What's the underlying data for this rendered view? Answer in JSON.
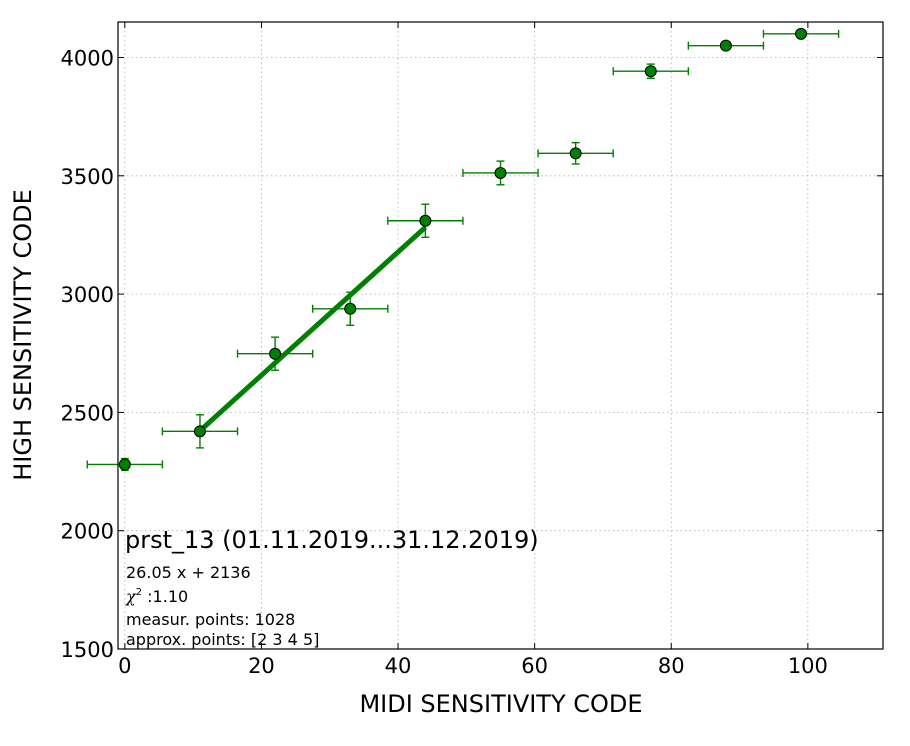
{
  "chart_data": {
    "type": "scatter",
    "xlabel": "MIDI SENSITIVITY CODE",
    "ylabel": "HIGH SENSITIVITY CODE",
    "xlim": [
      -1,
      111
    ],
    "ylim": [
      1500,
      4150
    ],
    "xticks": [
      0,
      20,
      40,
      60,
      80,
      100
    ],
    "yticks": [
      1500,
      2000,
      2500,
      3000,
      3500,
      4000
    ],
    "grid": true,
    "color": "#008000",
    "points": [
      {
        "x": 0,
        "y": 2280,
        "xerr": 5.5,
        "yerr": 25
      },
      {
        "x": 11,
        "y": 2420,
        "xerr": 5.5,
        "yerr": 70
      },
      {
        "x": 22,
        "y": 2748,
        "xerr": 5.5,
        "yerr": 70
      },
      {
        "x": 33,
        "y": 2938,
        "xerr": 5.5,
        "yerr": 70
      },
      {
        "x": 44,
        "y": 3310,
        "xerr": 5.5,
        "yerr": 70
      },
      {
        "x": 55,
        "y": 3512,
        "xerr": 5.5,
        "yerr": 50
      },
      {
        "x": 66,
        "y": 3595,
        "xerr": 5.5,
        "yerr": 45
      },
      {
        "x": 77,
        "y": 3942,
        "xerr": 5.5,
        "yerr": 30
      },
      {
        "x": 88,
        "y": 4050,
        "xerr": 5.5,
        "yerr": 5
      },
      {
        "x": 99,
        "y": 4100,
        "xerr": 5.5,
        "yerr": 5
      }
    ],
    "fit_line": {
      "slope": 26.05,
      "intercept": 2136,
      "x_range": [
        11,
        44
      ]
    },
    "annotation": {
      "title": "prst_13 (01.11.2019...31.12.2019)",
      "equation": "26.05 x + 2136",
      "chi_symbol": "χ",
      "chi_sup": "2",
      "chi_value": " :1.10",
      "measur": "measur. points: 1028",
      "approx": "approx. points: [2 3 4 5]"
    }
  }
}
